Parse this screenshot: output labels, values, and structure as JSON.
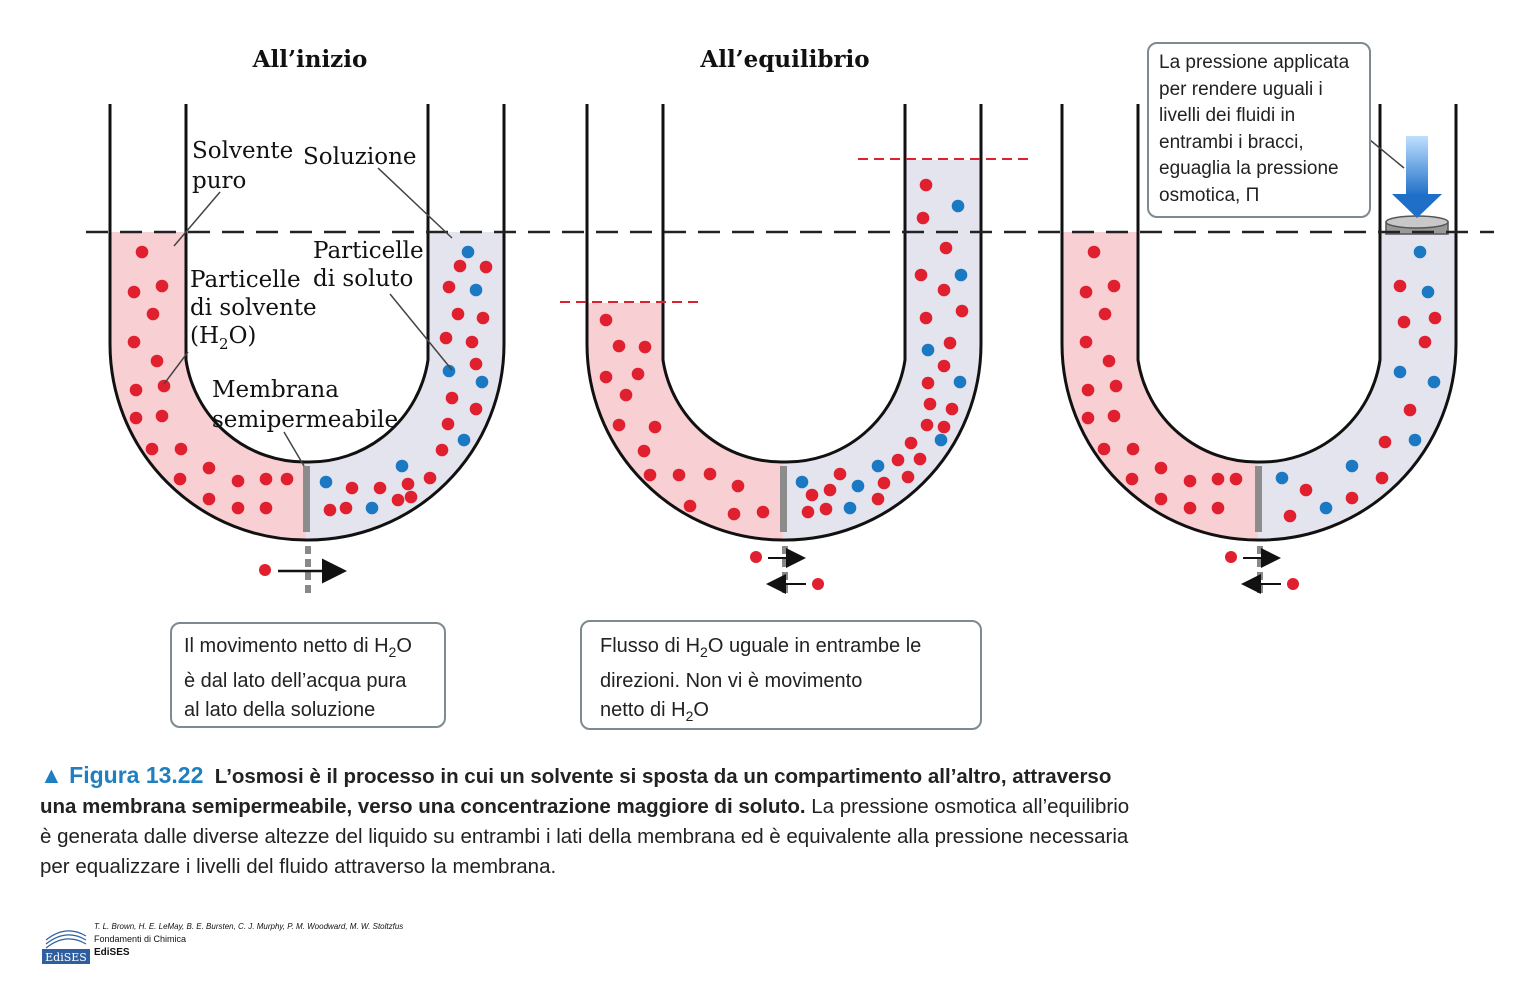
{
  "panels": {
    "initial_title": "All’inizio",
    "equilibrium_title": "All’equilibrio"
  },
  "labels": {
    "pure_solvent_1": "Solvente",
    "pure_solvent_2": "puro",
    "solution": "Soluzione",
    "solute_particles_1": "Particelle",
    "solute_particles_2": "di soluto",
    "solvent_particles_1": "Particelle",
    "solvent_particles_2": "di solvente",
    "solvent_particles_3": "(H",
    "solvent_particles_sub": "2",
    "solvent_particles_4": "O)",
    "membrane_1": "Membrana",
    "membrane_2": "semipermeabile"
  },
  "boxes": {
    "net_movement": {
      "line1_pre": "Il movimento netto di H",
      "sub": "2",
      "line1_post": "O",
      "line2": "è dal lato dell’acqua pura",
      "line3": "al lato della soluzione"
    },
    "equal_flow": {
      "line1_pre": "Flusso di H",
      "sub": "2",
      "line1_post": "O uguale in entrambe le",
      "line2": "direzioni. Non vi è movimento",
      "line3_pre": "netto di H",
      "sub2": "2",
      "line3_post": "O"
    },
    "applied_pressure": {
      "line1": "La pressione applicata",
      "line2": "per rendere uguali i",
      "line3": "livelli dei fluidi in",
      "line4": "entrambi i bracci,",
      "line5": "eguaglia la pressione",
      "line6": "osmotica, Π"
    }
  },
  "caption": {
    "figure_label": "▲ Figura 13.22",
    "bold_text": "L’osmosi è il processo in cui un solvente si sposta da un compartimento all’altro, attraverso una membrana semipermeabile, verso una concentrazione maggiore di soluto.",
    "normal_text": "La pressione osmotica all’equilibrio è generata dalle diverse altezze del liquido su entrambi i lati della membrana ed è equivalente alla pressione necessaria per equalizzare i livelli del fluido attraverso la membrana."
  },
  "footer": {
    "authors": "T. L. Brown, H. E. LeMay, B. E. Bursten, C. J. Murphy, P. M. Woodward, M. W. Stoltzfus",
    "book": "Fondamenti di Chimica",
    "publisher": "EdiSES",
    "logo_text": "EdiSES"
  },
  "colors": {
    "pure_solvent_fill": "#f8cfd3",
    "solution_fill": "#e4e4ee",
    "solvent_particle": "#e0202e",
    "solute_particle": "#1b78c2",
    "membrane": "#8c8c8c",
    "reference_level": "#222222",
    "level_marker": "#e02030",
    "arrow_blue": "#2b86d8"
  }
}
